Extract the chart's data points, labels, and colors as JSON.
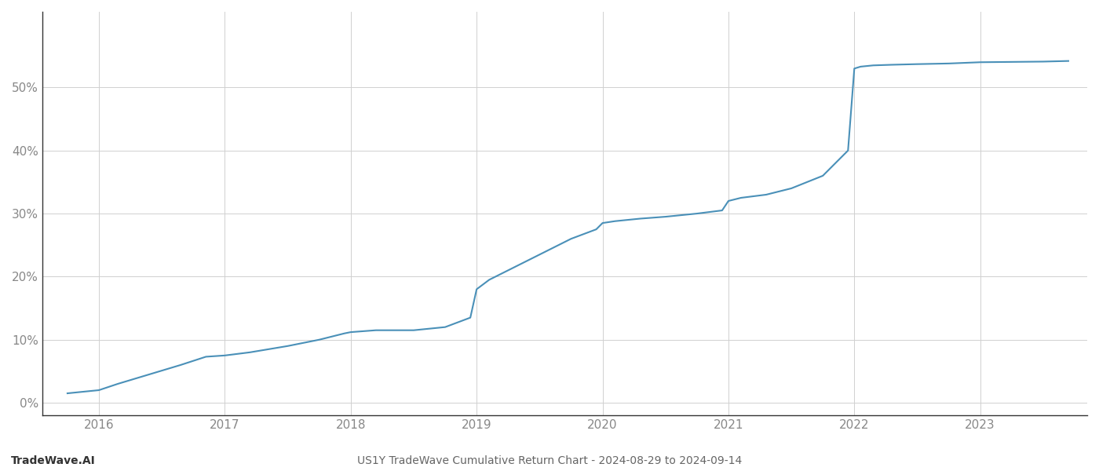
{
  "title": "US1Y TradeWave Cumulative Return Chart - 2024-08-29 to 2024-09-14",
  "watermark": "TradeWave.AI",
  "line_color": "#4a90b8",
  "background_color": "#ffffff",
  "grid_color": "#d0d0d0",
  "x_values": [
    2015.75,
    2016.0,
    2016.15,
    2016.4,
    2016.65,
    2016.85,
    2017.0,
    2017.2,
    2017.5,
    2017.75,
    2017.95,
    2018.0,
    2018.2,
    2018.5,
    2018.75,
    2018.95,
    2019.0,
    2019.1,
    2019.3,
    2019.5,
    2019.75,
    2019.95,
    2020.0,
    2020.1,
    2020.3,
    2020.5,
    2020.75,
    2020.95,
    2021.0,
    2021.1,
    2021.3,
    2021.5,
    2021.75,
    2021.95,
    2022.0,
    2022.05,
    2022.15,
    2022.3,
    2022.5,
    2022.75,
    2023.0,
    2023.5,
    2023.7
  ],
  "y_values": [
    1.5,
    2.0,
    3.0,
    4.5,
    6.0,
    7.3,
    7.5,
    8.0,
    9.0,
    10.0,
    11.0,
    11.2,
    11.5,
    11.5,
    12.0,
    13.5,
    18.0,
    19.5,
    21.5,
    23.5,
    26.0,
    27.5,
    28.5,
    28.8,
    29.2,
    29.5,
    30.0,
    30.5,
    32.0,
    32.5,
    33.0,
    34.0,
    36.0,
    40.0,
    53.0,
    53.3,
    53.5,
    53.6,
    53.7,
    53.8,
    54.0,
    54.1,
    54.2
  ],
  "xlim": [
    2015.55,
    2023.85
  ],
  "ylim": [
    -2,
    62
  ],
  "yticks": [
    0,
    10,
    20,
    30,
    40,
    50
  ],
  "xticks": [
    2016,
    2017,
    2018,
    2019,
    2020,
    2021,
    2022,
    2023
  ],
  "figsize": [
    14.0,
    6.0
  ],
  "dpi": 100,
  "line_width": 1.5
}
